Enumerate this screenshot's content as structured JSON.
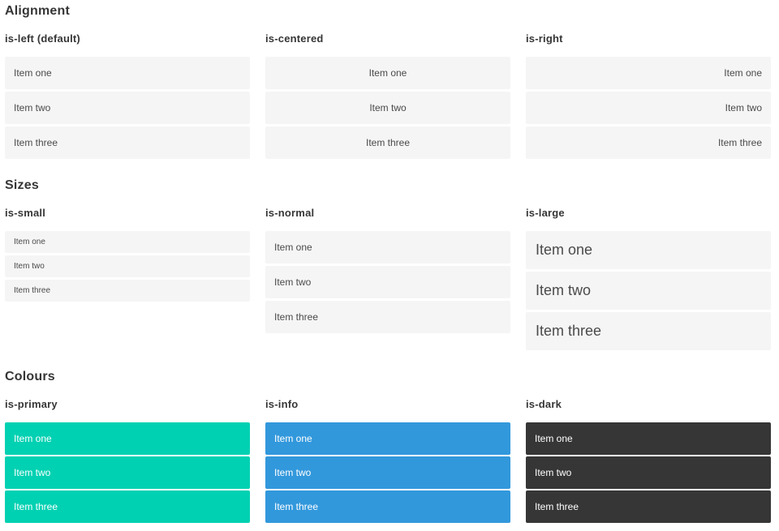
{
  "colors": {
    "primary": "#00d1b2",
    "info": "#3298dc",
    "dark": "#363636",
    "item_background": "#f5f5f5",
    "item_text": "#4a4a4a",
    "heading_text": "#363636",
    "colored_item_text": "#ffffff"
  },
  "sections": [
    {
      "title": "Alignment",
      "groups": [
        {
          "label": "is-left (default)",
          "variant": "left",
          "items": [
            "Item one",
            "Item two",
            "Item three"
          ]
        },
        {
          "label": "is-centered",
          "variant": "centered",
          "items": [
            "Item one",
            "Item two",
            "Item three"
          ]
        },
        {
          "label": "is-right",
          "variant": "right",
          "items": [
            "Item one",
            "Item two",
            "Item three"
          ]
        }
      ]
    },
    {
      "title": "Sizes",
      "groups": [
        {
          "label": "is-small",
          "variant": "small",
          "items": [
            "Item one",
            "Item two",
            "Item three"
          ]
        },
        {
          "label": "is-normal",
          "variant": "normal",
          "items": [
            "Item one",
            "Item two",
            "Item three"
          ]
        },
        {
          "label": "is-large",
          "variant": "large",
          "items": [
            "Item one",
            "Item two",
            "Item three"
          ]
        }
      ]
    },
    {
      "title": "Colours",
      "groups": [
        {
          "label": "is-primary",
          "variant": "primary",
          "items": [
            "Item one",
            "Item two",
            "Item three"
          ]
        },
        {
          "label": "is-info",
          "variant": "info",
          "items": [
            "Item one",
            "Item two",
            "Item three"
          ]
        },
        {
          "label": "is-dark",
          "variant": "dark",
          "items": [
            "Item one",
            "Item two",
            "Item three"
          ]
        }
      ]
    }
  ]
}
